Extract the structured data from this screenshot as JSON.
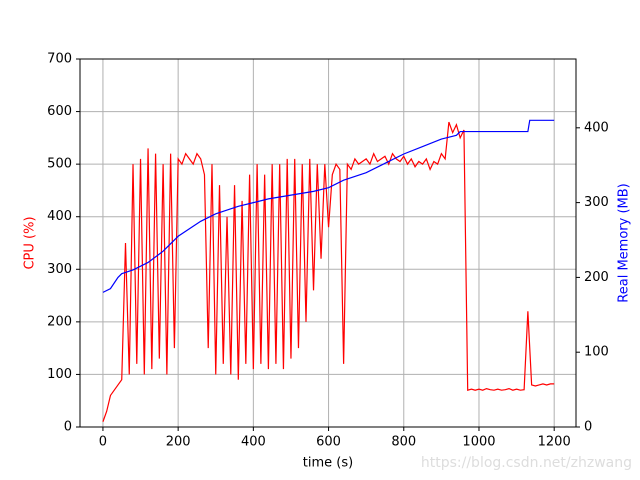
{
  "chart_data": {
    "type": "line",
    "xlabel": "time (s)",
    "ylabel": "CPU (%)",
    "y2label": "Real Memory (MB)",
    "xlim": [
      -61,
      1258
    ],
    "xticks": [
      0,
      200,
      400,
      600,
      800,
      1000,
      1200
    ],
    "ylim": [
      0,
      700
    ],
    "yticks": [
      0,
      100,
      200,
      300,
      400,
      500,
      600,
      700
    ],
    "y2lim": [
      0,
      492
    ],
    "y2ticks": [
      0,
      100,
      200,
      300,
      400
    ],
    "grid": true,
    "watermark": "https://blog.csdn.net/zhzwang",
    "series": [
      {
        "color": "#ff0000",
        "axis": "y",
        "x": [
          0,
          10,
          20,
          30,
          40,
          50,
          60,
          70,
          80,
          90,
          100,
          110,
          120,
          130,
          140,
          150,
          160,
          170,
          180,
          190,
          200,
          210,
          220,
          230,
          240,
          250,
          260,
          270,
          280,
          290,
          300,
          310,
          320,
          330,
          340,
          350,
          360,
          370,
          380,
          390,
          400,
          410,
          420,
          430,
          440,
          450,
          460,
          470,
          480,
          490,
          500,
          510,
          520,
          530,
          540,
          550,
          560,
          570,
          580,
          590,
          600,
          610,
          620,
          630,
          640,
          650,
          660,
          670,
          680,
          690,
          700,
          710,
          720,
          730,
          740,
          750,
          760,
          770,
          780,
          790,
          800,
          810,
          820,
          830,
          840,
          850,
          860,
          870,
          880,
          890,
          900,
          910,
          920,
          930,
          940,
          950,
          960,
          970,
          980,
          990,
          1000,
          1010,
          1020,
          1030,
          1040,
          1050,
          1060,
          1070,
          1080,
          1090,
          1100,
          1110,
          1120,
          1130,
          1140,
          1150,
          1160,
          1170,
          1180,
          1190,
          1200
        ],
        "values": [
          10,
          30,
          60,
          70,
          80,
          90,
          350,
          100,
          500,
          120,
          510,
          100,
          530,
          110,
          520,
          130,
          500,
          100,
          520,
          150,
          510,
          500,
          520,
          510,
          500,
          520,
          510,
          480,
          150,
          500,
          100,
          460,
          120,
          400,
          100,
          460,
          90,
          430,
          120,
          480,
          110,
          500,
          120,
          480,
          110,
          500,
          120,
          500,
          110,
          510,
          130,
          510,
          150,
          500,
          200,
          510,
          260,
          500,
          320,
          500,
          380,
          480,
          500,
          490,
          120,
          500,
          490,
          510,
          500,
          505,
          510,
          500,
          520,
          505,
          510,
          515,
          500,
          520,
          510,
          505,
          515,
          500,
          510,
          495,
          505,
          500,
          510,
          490,
          505,
          500,
          520,
          510,
          580,
          560,
          575,
          550,
          565,
          70,
          72,
          70,
          72,
          70,
          73,
          71,
          70,
          72,
          70,
          71,
          73,
          70,
          72,
          70,
          71,
          220,
          80,
          78,
          80,
          82,
          80,
          82,
          82
        ]
      },
      {
        "color": "#0000ff",
        "axis": "y2",
        "x": [
          0,
          20,
          40,
          50,
          80,
          120,
          160,
          200,
          260,
          300,
          360,
          400,
          440,
          500,
          560,
          600,
          640,
          700,
          760,
          800,
          850,
          900,
          940,
          950,
          1130,
          1135,
          1200
        ],
        "values": [
          180,
          185,
          200,
          205,
          210,
          220,
          235,
          255,
          275,
          285,
          295,
          300,
          305,
          310,
          315,
          320,
          330,
          340,
          355,
          365,
          375,
          385,
          390,
          395,
          395,
          410,
          410
        ]
      }
    ]
  }
}
